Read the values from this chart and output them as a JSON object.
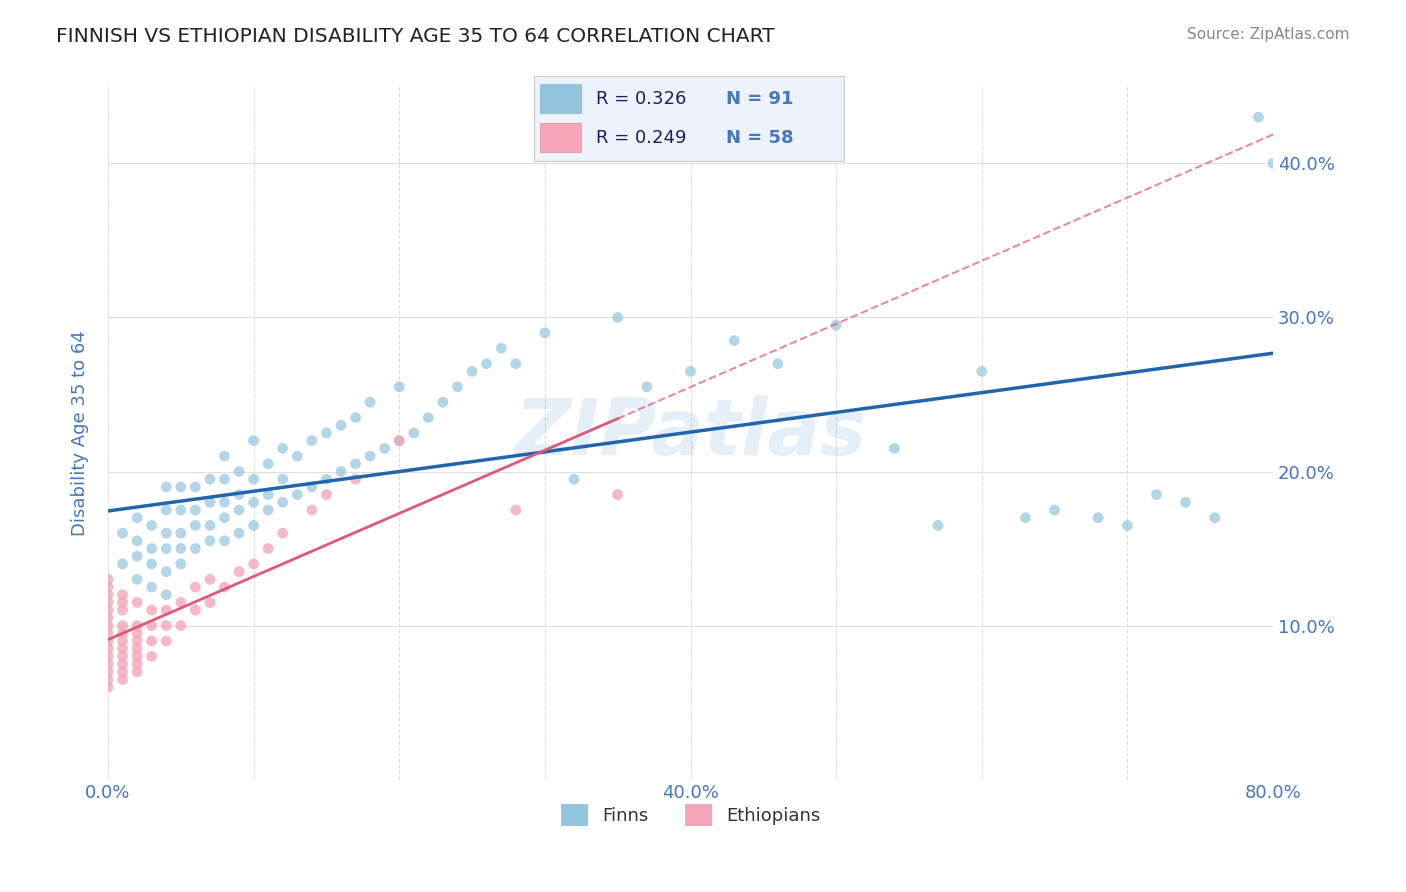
{
  "title": "FINNISH VS ETHIOPIAN DISABILITY AGE 35 TO 64 CORRELATION CHART",
  "source": "Source: ZipAtlas.com",
  "ylabel": "Disability Age 35 to 64",
  "xlim": [
    0.0,
    0.8
  ],
  "ylim": [
    0.0,
    0.45
  ],
  "xticks": [
    0.0,
    0.1,
    0.2,
    0.3,
    0.4,
    0.5,
    0.6,
    0.7,
    0.8
  ],
  "yticks": [
    0.0,
    0.1,
    0.2,
    0.3,
    0.4
  ],
  "finns_R": 0.326,
  "finns_N": 91,
  "ethiopians_R": 0.249,
  "ethiopians_N": 58,
  "finn_color": "#92c5de",
  "ethiopian_color": "#f4a6b8",
  "finn_line_color": "#2166ac",
  "ethiopian_line_color": "#e05878",
  "watermark": "ZIPatlas",
  "finns_x": [
    0.01,
    0.01,
    0.02,
    0.02,
    0.02,
    0.02,
    0.03,
    0.03,
    0.03,
    0.03,
    0.04,
    0.04,
    0.04,
    0.04,
    0.04,
    0.04,
    0.05,
    0.05,
    0.05,
    0.05,
    0.05,
    0.06,
    0.06,
    0.06,
    0.06,
    0.07,
    0.07,
    0.07,
    0.07,
    0.08,
    0.08,
    0.08,
    0.08,
    0.08,
    0.09,
    0.09,
    0.09,
    0.09,
    0.1,
    0.1,
    0.1,
    0.1,
    0.11,
    0.11,
    0.11,
    0.12,
    0.12,
    0.12,
    0.13,
    0.13,
    0.14,
    0.14,
    0.15,
    0.15,
    0.16,
    0.16,
    0.17,
    0.17,
    0.18,
    0.18,
    0.19,
    0.2,
    0.2,
    0.21,
    0.22,
    0.23,
    0.24,
    0.25,
    0.26,
    0.27,
    0.28,
    0.3,
    0.32,
    0.35,
    0.37,
    0.4,
    0.43,
    0.46,
    0.5,
    0.54,
    0.57,
    0.6,
    0.63,
    0.65,
    0.68,
    0.7,
    0.72,
    0.74,
    0.76,
    0.79,
    0.8
  ],
  "finns_y": [
    0.14,
    0.16,
    0.13,
    0.145,
    0.155,
    0.17,
    0.125,
    0.14,
    0.15,
    0.165,
    0.12,
    0.135,
    0.15,
    0.16,
    0.175,
    0.19,
    0.14,
    0.15,
    0.16,
    0.175,
    0.19,
    0.15,
    0.165,
    0.175,
    0.19,
    0.155,
    0.165,
    0.18,
    0.195,
    0.155,
    0.17,
    0.18,
    0.195,
    0.21,
    0.16,
    0.175,
    0.185,
    0.2,
    0.165,
    0.18,
    0.195,
    0.22,
    0.175,
    0.185,
    0.205,
    0.18,
    0.195,
    0.215,
    0.185,
    0.21,
    0.19,
    0.22,
    0.195,
    0.225,
    0.2,
    0.23,
    0.205,
    0.235,
    0.21,
    0.245,
    0.215,
    0.22,
    0.255,
    0.225,
    0.235,
    0.245,
    0.255,
    0.265,
    0.27,
    0.28,
    0.27,
    0.29,
    0.195,
    0.3,
    0.255,
    0.265,
    0.285,
    0.27,
    0.295,
    0.215,
    0.165,
    0.265,
    0.17,
    0.175,
    0.17,
    0.165,
    0.185,
    0.18,
    0.17,
    0.43,
    0.4
  ],
  "ethiopians_x": [
    0.0,
    0.0,
    0.0,
    0.0,
    0.0,
    0.0,
    0.0,
    0.0,
    0.0,
    0.0,
    0.0,
    0.0,
    0.0,
    0.0,
    0.0,
    0.01,
    0.01,
    0.01,
    0.01,
    0.01,
    0.01,
    0.01,
    0.01,
    0.01,
    0.01,
    0.01,
    0.02,
    0.02,
    0.02,
    0.02,
    0.02,
    0.02,
    0.02,
    0.02,
    0.03,
    0.03,
    0.03,
    0.03,
    0.04,
    0.04,
    0.04,
    0.05,
    0.05,
    0.06,
    0.06,
    0.07,
    0.07,
    0.08,
    0.09,
    0.1,
    0.11,
    0.12,
    0.14,
    0.15,
    0.17,
    0.2,
    0.28,
    0.35
  ],
  "ethiopians_y": [
    0.06,
    0.065,
    0.07,
    0.075,
    0.08,
    0.085,
    0.09,
    0.095,
    0.1,
    0.105,
    0.11,
    0.115,
    0.12,
    0.125,
    0.13,
    0.065,
    0.07,
    0.075,
    0.08,
    0.085,
    0.09,
    0.095,
    0.1,
    0.11,
    0.115,
    0.12,
    0.07,
    0.075,
    0.08,
    0.085,
    0.09,
    0.095,
    0.1,
    0.115,
    0.08,
    0.09,
    0.1,
    0.11,
    0.09,
    0.1,
    0.11,
    0.1,
    0.115,
    0.11,
    0.125,
    0.115,
    0.13,
    0.125,
    0.135,
    0.14,
    0.15,
    0.16,
    0.175,
    0.185,
    0.195,
    0.22,
    0.175,
    0.185
  ],
  "background_color": "#ffffff",
  "grid_color": "#dddddd",
  "axis_color": "#4477bb",
  "legend_box_color": "#eef2fa",
  "title_color": "#222222"
}
